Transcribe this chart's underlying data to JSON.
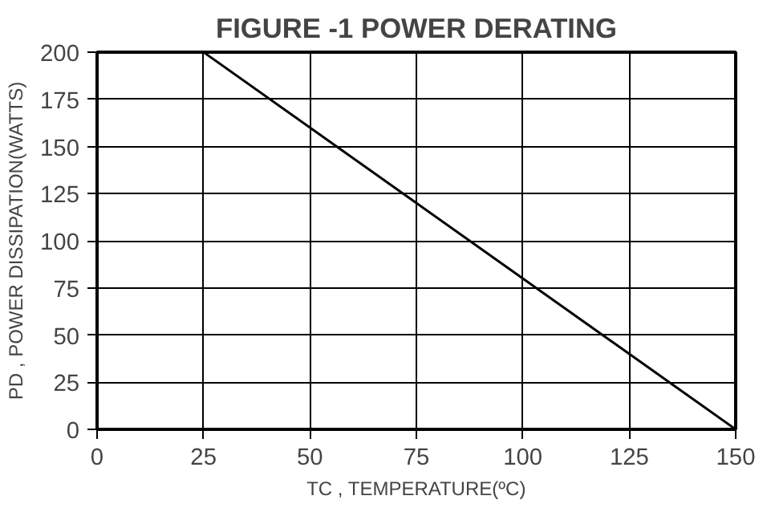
{
  "chart_data": {
    "type": "line",
    "title": "FIGURE -1 POWER DERATING",
    "xlabel": "TC , TEMPERATURE(ºC)",
    "ylabel": "PD , POWER DISSIPATION(WATTS)",
    "x": [
      25,
      150
    ],
    "series": [
      {
        "color": "#000000",
        "values": [
          200,
          0
        ]
      }
    ],
    "xlim": [
      0,
      150
    ],
    "xticks": [
      0,
      25,
      50,
      75,
      100,
      125,
      150
    ],
    "ylim": [
      0,
      200
    ],
    "yticks": [
      0,
      25,
      50,
      75,
      100,
      125,
      150,
      175,
      200
    ],
    "grid": true,
    "line_style": "solid"
  }
}
